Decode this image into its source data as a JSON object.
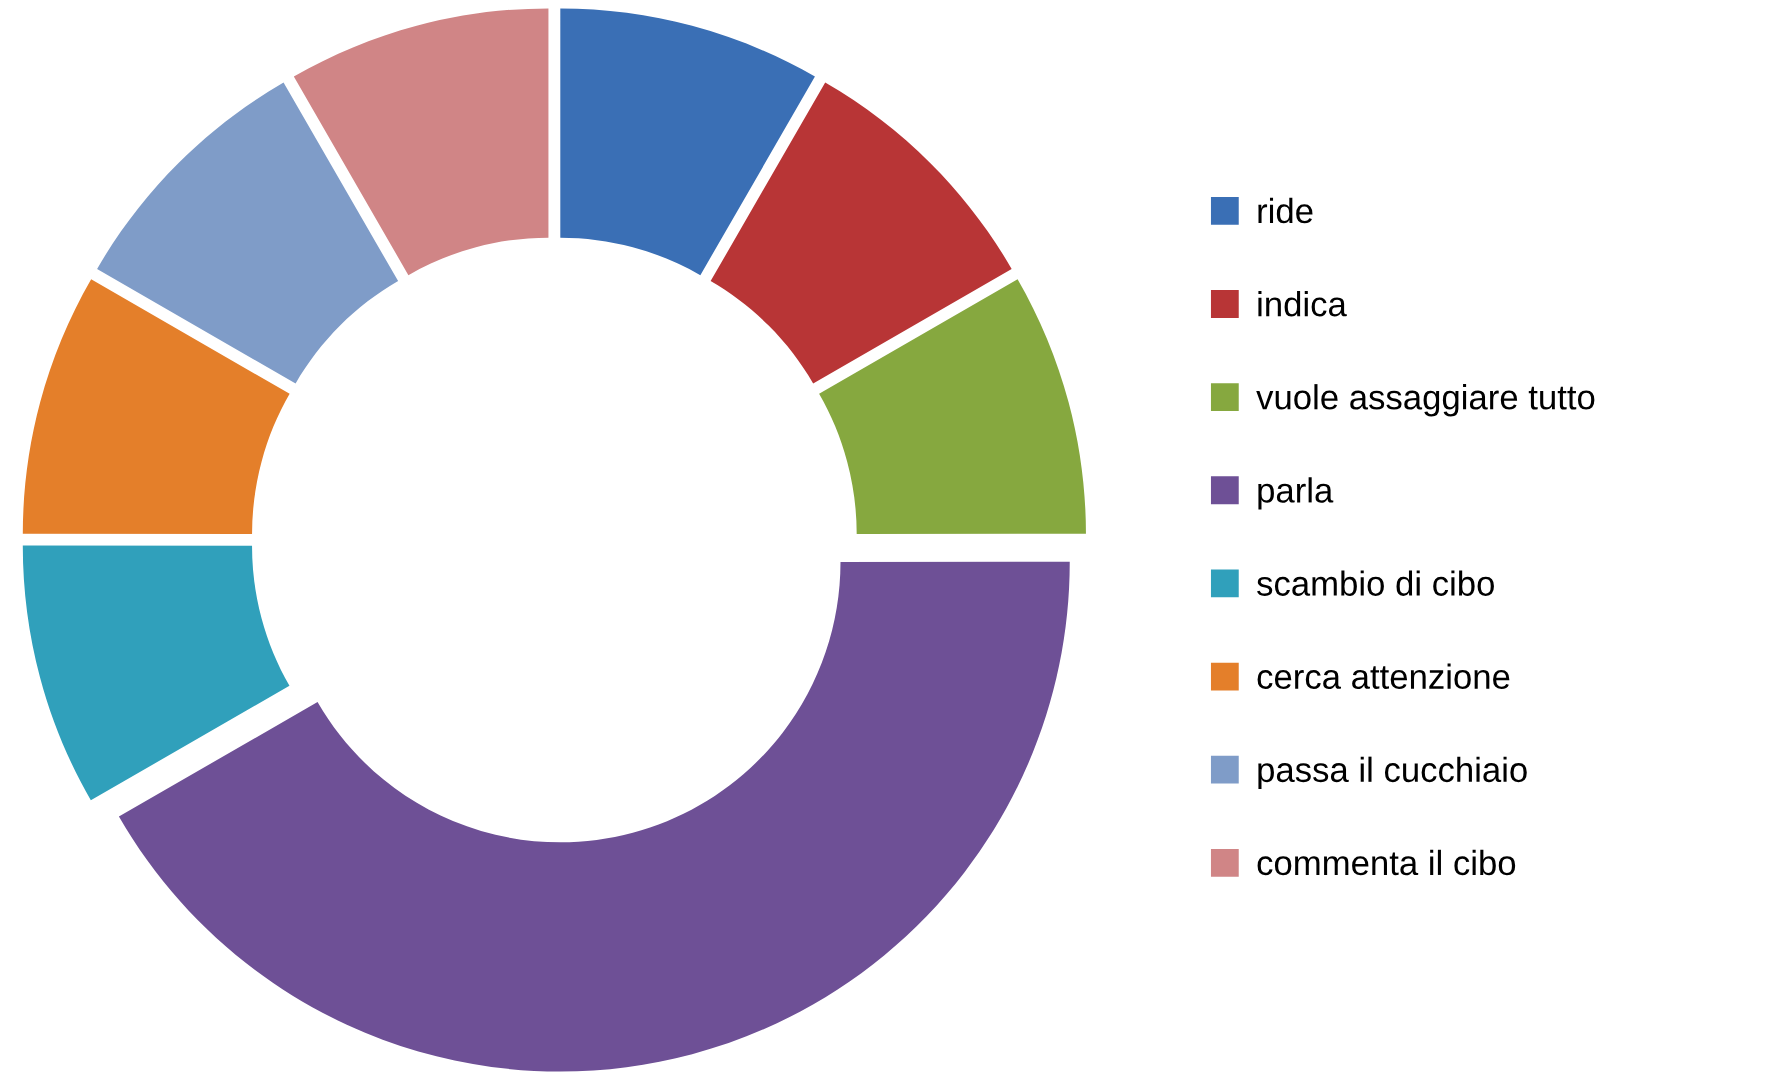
{
  "chart_data": {
    "type": "donut",
    "categories": [
      "ride",
      "indica",
      "vuole assaggiare tutto",
      "parla",
      "scambio di cibo",
      "cerca attenzione",
      "passa il cucchiaio",
      "commenta il cibo"
    ],
    "values": [
      8.33,
      8.33,
      8.33,
      41.69,
      8.33,
      8.33,
      8.33,
      8.33
    ],
    "colors": [
      "#3a6fb5",
      "#b83536",
      "#86a83f",
      "#6e5096",
      "#30a0bb",
      "#e47f2a",
      "#7f9cc8",
      "#d08586"
    ],
    "legend": "right"
  }
}
